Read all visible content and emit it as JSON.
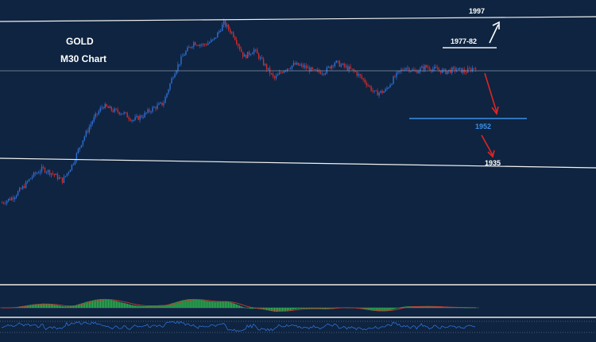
{
  "colors": {
    "background": "#0e2440",
    "bull": "#2f6fd6",
    "bear": "#d62a2a",
    "level_line": "#f2f2f2",
    "support_line": "#3b8fe8",
    "arrow_up": "#ffffff",
    "arrow_down": "#e02424",
    "macd_hist": "#2ebd4e",
    "macd_signal": "#c8392f",
    "rsi_line": "#2f6fd6",
    "panel_separator": "#b8b8b8"
  },
  "chart_data": {
    "type": "candlestick",
    "title": "GOLD",
    "subtitle": "M30 Chart",
    "grid": false,
    "y_levels": [
      {
        "label": "1997",
        "value": 1997,
        "style": "white"
      },
      {
        "label": "1977-82",
        "value": 1980,
        "style": "white"
      },
      {
        "label": "1952",
        "value": 1952,
        "style": "blue"
      },
      {
        "label": "1935",
        "value": 1935,
        "style": "white"
      }
    ],
    "projection": [
      {
        "direction": "up",
        "target": "1997"
      },
      {
        "direction": "down",
        "target": "1952"
      },
      {
        "direction": "down",
        "target": "1935"
      }
    ],
    "price_path": [
      1920,
      1922,
      1926,
      1931,
      1934,
      1932,
      1929,
      1936,
      1946,
      1954,
      1960,
      1958,
      1957,
      1954,
      1956,
      1959,
      1961,
      1973,
      1981,
      1986,
      1985,
      1987,
      1994,
      1989,
      1980,
      1983,
      1977,
      1971,
      1975,
      1977,
      1976,
      1974,
      1974,
      1978,
      1976,
      1974,
      1970,
      1965,
      1966,
      1972,
      1976,
      1974,
      1976,
      1975,
      1974,
      1975,
      1974,
      1976
    ],
    "indicators": [
      {
        "name": "MACD",
        "type": "histogram"
      },
      {
        "name": "RSI",
        "type": "line"
      }
    ]
  }
}
